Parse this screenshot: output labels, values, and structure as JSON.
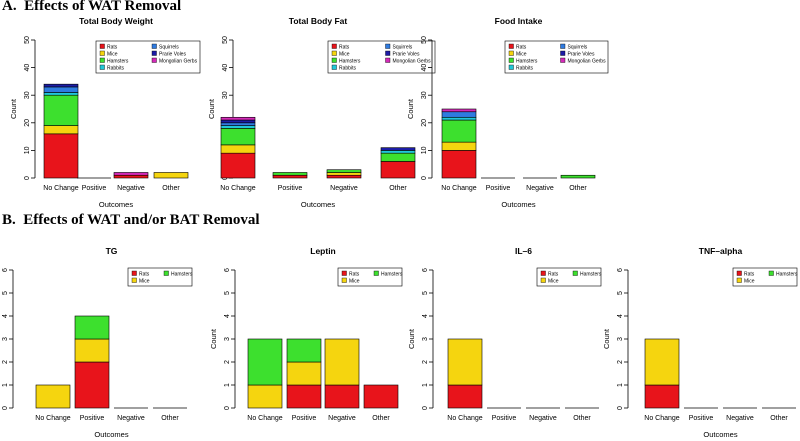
{
  "sections": [
    {
      "label": "A.",
      "title": "Effects of WAT Removal"
    },
    {
      "label": "B.",
      "title": "Effects of WAT and/or BAT Removal"
    }
  ],
  "colors": {
    "Rats": "#e8141b",
    "Mice": "#f5d50f",
    "Hamsters": "#3de02e",
    "Rabbits": "#20c8d8",
    "Squirrels": "#2f7be0",
    "Prarie Voles": "#1c1ca6",
    "Mongolian Gerbs": "#d42ab8"
  },
  "chart_data": [
    {
      "type": "bar",
      "stacked": true,
      "section": "A",
      "title": "Total Body Weight",
      "xlabel": "Outcomes",
      "ylabel": "Count",
      "ylim": [
        0,
        50
      ],
      "yticks": [
        0,
        10,
        20,
        30,
        40,
        50
      ],
      "categories": [
        "No Change",
        "Positive",
        "Negative",
        "Other"
      ],
      "legend": [
        "Rats",
        "Mice",
        "Hamsters",
        "Rabbits",
        "Squirrels",
        "Prarie Voles",
        "Mongolian Gerbs"
      ],
      "legend_position": "top-right",
      "series": [
        {
          "name": "Rats",
          "values": [
            16,
            0,
            1,
            0
          ]
        },
        {
          "name": "Mice",
          "values": [
            3,
            0,
            0,
            2
          ]
        },
        {
          "name": "Hamsters",
          "values": [
            11,
            0,
            0,
            0
          ]
        },
        {
          "name": "Rabbits",
          "values": [
            1,
            0,
            0,
            0
          ]
        },
        {
          "name": "Squirrels",
          "values": [
            2,
            0,
            0,
            0
          ]
        },
        {
          "name": "Prarie Voles",
          "values": [
            1,
            0,
            0,
            0
          ]
        },
        {
          "name": "Mongolian Gerbs",
          "values": [
            0,
            0,
            1,
            0
          ]
        }
      ]
    },
    {
      "type": "bar",
      "stacked": true,
      "section": "A",
      "title": "Total Body Fat",
      "xlabel": "Outcomes",
      "ylabel": "Count",
      "ylim": [
        0,
        50
      ],
      "yticks": [
        0,
        10,
        20,
        30,
        40,
        50
      ],
      "categories": [
        "No Change",
        "Positive",
        "Negative",
        "Other"
      ],
      "legend": [
        "Rats",
        "Mice",
        "Hamsters",
        "Rabbits",
        "Squirrels",
        "Prarie Voles",
        "Mongolian Gerbs"
      ],
      "legend_position": "top-right",
      "series": [
        {
          "name": "Rats",
          "values": [
            9,
            1,
            1,
            6
          ]
        },
        {
          "name": "Mice",
          "values": [
            3,
            0,
            1,
            0
          ]
        },
        {
          "name": "Hamsters",
          "values": [
            6,
            1,
            1,
            3
          ]
        },
        {
          "name": "Rabbits",
          "values": [
            1,
            0,
            0,
            1
          ]
        },
        {
          "name": "Squirrels",
          "values": [
            1,
            0,
            0,
            0
          ]
        },
        {
          "name": "Prarie Voles",
          "values": [
            1,
            0,
            0,
            1
          ]
        },
        {
          "name": "Mongolian Gerbs",
          "values": [
            1,
            0,
            0,
            0
          ]
        }
      ]
    },
    {
      "type": "bar",
      "stacked": true,
      "section": "A",
      "title": "Food Intake",
      "xlabel": "Outcomes",
      "ylabel": "Count",
      "ylim": [
        0,
        50
      ],
      "yticks": [
        0,
        10,
        20,
        30,
        40,
        50
      ],
      "categories": [
        "No Change",
        "Positive",
        "Negative",
        "Other"
      ],
      "legend": [
        "Rats",
        "Mice",
        "Hamsters",
        "Rabbits",
        "Squirrels",
        "Prarie Voles",
        "Mongolian Gerbs"
      ],
      "legend_position": "top-right",
      "series": [
        {
          "name": "Rats",
          "values": [
            10,
            0,
            0,
            0
          ]
        },
        {
          "name": "Mice",
          "values": [
            3,
            0,
            0,
            0
          ]
        },
        {
          "name": "Hamsters",
          "values": [
            8,
            0,
            0,
            1
          ]
        },
        {
          "name": "Rabbits",
          "values": [
            1,
            0,
            0,
            0
          ]
        },
        {
          "name": "Squirrels",
          "values": [
            2,
            0,
            0,
            0
          ]
        },
        {
          "name": "Prarie Voles",
          "values": [
            0,
            0,
            0,
            0
          ]
        },
        {
          "name": "Mongolian Gerbs",
          "values": [
            1,
            0,
            0,
            0
          ]
        }
      ]
    },
    {
      "type": "bar",
      "stacked": true,
      "section": "B",
      "title": "TG",
      "xlabel": "Outcomes",
      "ylabel": "Count",
      "ylim": [
        0,
        6
      ],
      "yticks": [
        0,
        1,
        2,
        3,
        4,
        5,
        6
      ],
      "categories": [
        "No Change",
        "Positive",
        "Negative",
        "Other"
      ],
      "legend": [
        "Rats",
        "Mice",
        "Hamsters"
      ],
      "legend_position": "top-right",
      "series": [
        {
          "name": "Rats",
          "values": [
            0,
            2,
            0,
            0
          ]
        },
        {
          "name": "Mice",
          "values": [
            1,
            1,
            0,
            0
          ]
        },
        {
          "name": "Hamsters",
          "values": [
            0,
            1,
            0,
            0
          ]
        }
      ]
    },
    {
      "type": "bar",
      "stacked": true,
      "section": "B",
      "title": "Leptin",
      "xlabel": "",
      "ylabel": "Count",
      "ylim": [
        0,
        6
      ],
      "yticks": [
        0,
        1,
        2,
        3,
        4,
        5,
        6
      ],
      "categories": [
        "No Change",
        "Positive",
        "Negative",
        "Other"
      ],
      "legend": [
        "Rats",
        "Mice",
        "Hamsters"
      ],
      "legend_position": "top-right",
      "series": [
        {
          "name": "Rats",
          "values": [
            0,
            1,
            1,
            1
          ]
        },
        {
          "name": "Mice",
          "values": [
            1,
            1,
            2,
            0
          ]
        },
        {
          "name": "Hamsters",
          "values": [
            2,
            1,
            0,
            0
          ]
        }
      ]
    },
    {
      "type": "bar",
      "stacked": true,
      "section": "B",
      "title": "IL–6",
      "xlabel": "",
      "ylabel": "Count",
      "ylim": [
        0,
        6
      ],
      "yticks": [
        0,
        1,
        2,
        3,
        4,
        5,
        6
      ],
      "categories": [
        "No Change",
        "Positive",
        "Negative",
        "Other"
      ],
      "legend": [
        "Rats",
        "Mice",
        "Hamsters"
      ],
      "legend_position": "top-right",
      "series": [
        {
          "name": "Rats",
          "values": [
            1,
            0,
            0,
            0
          ]
        },
        {
          "name": "Mice",
          "values": [
            2,
            0,
            0,
            0
          ]
        },
        {
          "name": "Hamsters",
          "values": [
            0,
            0,
            0,
            0
          ]
        }
      ]
    },
    {
      "type": "bar",
      "stacked": true,
      "section": "B",
      "title": "TNF–alpha",
      "xlabel": "Outcomes",
      "ylabel": "Count",
      "ylim": [
        0,
        6
      ],
      "yticks": [
        0,
        1,
        2,
        3,
        4,
        5,
        6
      ],
      "categories": [
        "No Change",
        "Positive",
        "Negative",
        "Other"
      ],
      "legend": [
        "Rats",
        "Mice",
        "Hamsters"
      ],
      "legend_position": "top-right",
      "series": [
        {
          "name": "Rats",
          "values": [
            1,
            0,
            0,
            0
          ]
        },
        {
          "name": "Mice",
          "values": [
            2,
            0,
            0,
            0
          ]
        },
        {
          "name": "Hamsters",
          "values": [
            0,
            0,
            0,
            0
          ]
        }
      ]
    }
  ]
}
